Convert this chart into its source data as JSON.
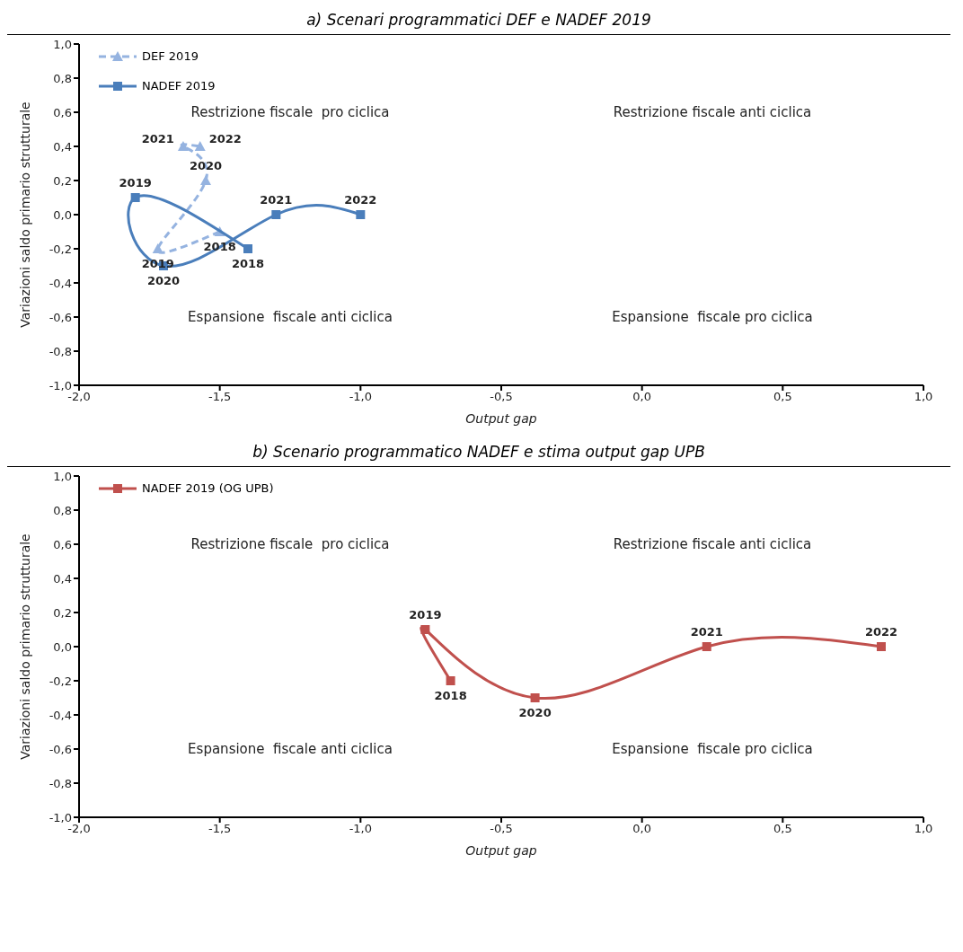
{
  "chart_data": [
    {
      "type": "line",
      "title": "a) Scenari programmatici DEF e NADEF 2019",
      "xlabel": "Output gap",
      "ylabel": "Variazioni saldo primario strutturale",
      "xlim": [
        -2.0,
        1.0
      ],
      "xticks": [
        {
          "value": -2.0,
          "label": "-2,0"
        },
        {
          "value": -1.5,
          "label": "-1,5"
        },
        {
          "value": -1.0,
          "label": "-1,0"
        },
        {
          "value": -0.5,
          "label": "-0,5"
        },
        {
          "value": 0.0,
          "label": "0,0"
        },
        {
          "value": 0.5,
          "label": "0,5"
        },
        {
          "value": 1.0,
          "label": "1,0"
        }
      ],
      "ylim": [
        -1.0,
        1.0
      ],
      "yticks": [
        {
          "value": -1.0,
          "label": "-1,0"
        },
        {
          "value": -0.8,
          "label": "-0,8"
        },
        {
          "value": -0.6,
          "label": "-0,6"
        },
        {
          "value": -0.4,
          "label": "-0,4"
        },
        {
          "value": -0.2,
          "label": "-0,2"
        },
        {
          "value": 0.0,
          "label": "0,0"
        },
        {
          "value": 0.2,
          "label": "0,2"
        },
        {
          "value": 0.4,
          "label": "0,4"
        },
        {
          "value": 0.6,
          "label": "0,6"
        },
        {
          "value": 0.8,
          "label": "0,8"
        },
        {
          "value": 1.0,
          "label": "1,0"
        }
      ],
      "grid": false,
      "legend": "top left",
      "annotations": [
        "Restrizione fiscale  pro ciclica",
        "Restrizione fiscale anti ciclica",
        "Espansione  fiscale anti ciclica",
        "Espansione  fiscale pro ciclica",
        {
          "text": "2018",
          "x": -1.5,
          "y": -0.1
        },
        {
          "text": "2019",
          "x": -1.72,
          "y": -0.2
        },
        {
          "text": "2020",
          "x": -1.55,
          "y": 0.2
        },
        {
          "text": "2021",
          "x": -1.63,
          "y": 0.4
        },
        {
          "text": "2022",
          "x": -1.57,
          "y": 0.4
        },
        {
          "text": "2018",
          "x": -1.4,
          "y": -0.2
        },
        {
          "text": "2019",
          "x": -1.8,
          "y": 0.1
        },
        {
          "text": "2020",
          "x": -1.7,
          "y": -0.3
        },
        {
          "text": "2021",
          "x": -1.3,
          "y": 0.0
        },
        {
          "text": "2022",
          "x": -1.0,
          "y": 0.0
        }
      ],
      "series": [
        {
          "name": "DEF 2019",
          "color": "#95b3e0",
          "marker": "triangle",
          "line_style": "dashed",
          "x": [
            -1.5,
            -1.72,
            -1.55,
            -1.63,
            -1.57
          ],
          "values": [
            -0.1,
            -0.2,
            0.2,
            0.4,
            0.4
          ]
        },
        {
          "name": "NADEF 2019",
          "color": "#4a7ebb",
          "marker": "square",
          "line_style": "solid",
          "x": [
            -1.4,
            -1.8,
            -1.7,
            -1.3,
            -1.0
          ],
          "values": [
            -0.2,
            0.1,
            -0.3,
            0.0,
            0.0
          ]
        }
      ]
    },
    {
      "type": "line",
      "title": "b) Scenario programmatico NADEF e stima output gap UPB",
      "xlabel": "Output gap",
      "ylabel": "Variazioni saldo primario strutturale",
      "xlim": [
        -2.0,
        1.0
      ],
      "xticks": [
        {
          "value": -2.0,
          "label": "-2,0"
        },
        {
          "value": -1.5,
          "label": "-1,5"
        },
        {
          "value": -1.0,
          "label": "-1,0"
        },
        {
          "value": -0.5,
          "label": "-0,5"
        },
        {
          "value": 0.0,
          "label": "0,0"
        },
        {
          "value": 0.5,
          "label": "0,5"
        },
        {
          "value": 1.0,
          "label": "1,0"
        }
      ],
      "ylim": [
        -1.0,
        1.0
      ],
      "yticks": [
        {
          "value": -1.0,
          "label": "-1,0"
        },
        {
          "value": -0.8,
          "label": "-0,8"
        },
        {
          "value": -0.6,
          "label": "-0,6"
        },
        {
          "value": -0.4,
          "label": "-0,4"
        },
        {
          "value": -0.2,
          "label": "-0,2"
        },
        {
          "value": 0.0,
          "label": "0,0"
        },
        {
          "value": 0.2,
          "label": "0,2"
        },
        {
          "value": 0.4,
          "label": "0,4"
        },
        {
          "value": 0.6,
          "label": "0,6"
        },
        {
          "value": 0.8,
          "label": "0,8"
        },
        {
          "value": 1.0,
          "label": "1,0"
        }
      ],
      "grid": false,
      "legend": "top left",
      "annotations": [
        "Restrizione fiscale  pro ciclica",
        "Restrizione fiscale anti ciclica",
        "Espansione  fiscale anti ciclica",
        "Espansione  fiscale pro ciclica",
        {
          "text": "2018",
          "x": -0.68,
          "y": -0.2
        },
        {
          "text": "2019",
          "x": -0.77,
          "y": 0.1
        },
        {
          "text": "2020",
          "x": -0.38,
          "y": -0.3
        },
        {
          "text": "2021",
          "x": 0.23,
          "y": 0.0
        },
        {
          "text": "2022",
          "x": 0.85,
          "y": 0.0
        }
      ],
      "series": [
        {
          "name": "NADEF 2019 (OG UPB)",
          "color": "#c0504d",
          "marker": "square",
          "line_style": "solid",
          "x": [
            -0.68,
            -0.77,
            -0.38,
            0.23,
            0.85
          ],
          "values": [
            -0.2,
            0.1,
            -0.3,
            0.0,
            0.0
          ]
        }
      ]
    }
  ]
}
